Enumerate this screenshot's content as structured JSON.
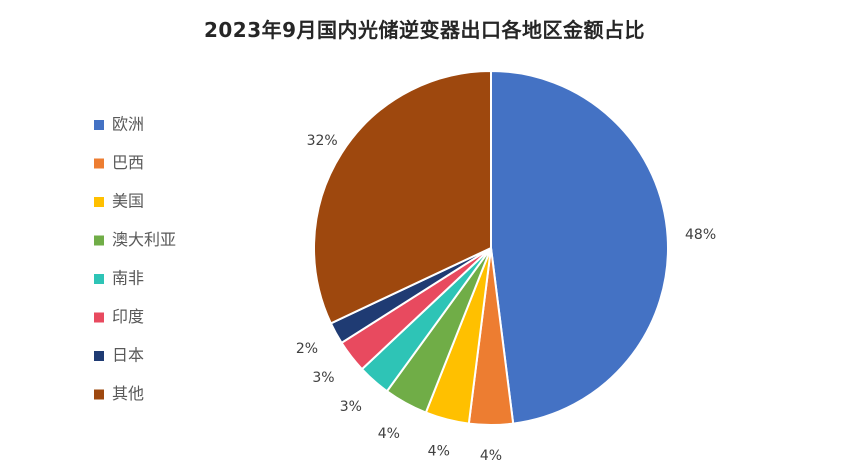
{
  "chart_data": {
    "type": "pie",
    "title": "2023年9月国内光储逆变器出口各地区金额占比",
    "categories": [
      "欧洲",
      "巴西",
      "美国",
      "澳大利亚",
      "南非",
      "印度",
      "日本",
      "其他"
    ],
    "values": [
      48,
      4,
      4,
      4,
      3,
      3,
      2,
      32
    ],
    "labels": [
      "48%",
      "4%",
      "4%",
      "4%",
      "3%",
      "3%",
      "2%",
      "32%"
    ],
    "colors": [
      "#4472C4",
      "#ED7D31",
      "#FFC000",
      "#70AD47",
      "#2EC4B6",
      "#E84A5F",
      "#1F3B73",
      "#9E480E"
    ],
    "legend_position": "left",
    "start_angle_deg": 0,
    "direction": "clockwise"
  }
}
